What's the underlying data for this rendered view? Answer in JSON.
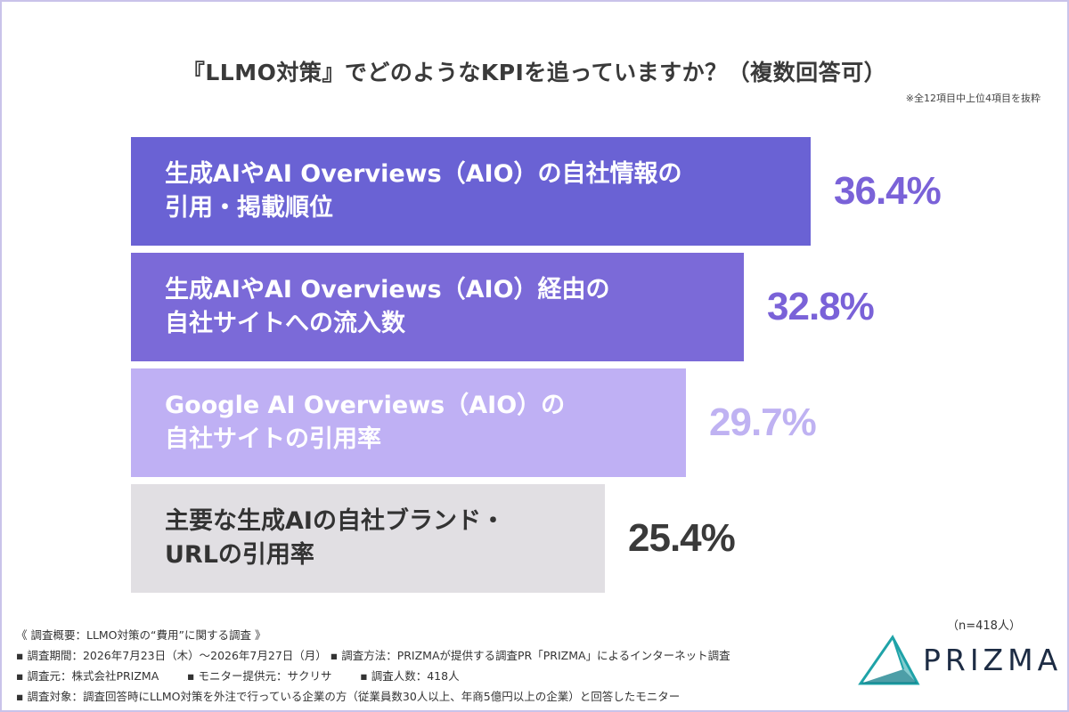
{
  "title": "『LLMO対策』でどのようなKPIを追っていますか？（複数回答可）",
  "note": "※全12項目中上位4項目を抜粋",
  "chart_data": {
    "type": "bar",
    "orientation": "horizontal",
    "categories": [
      "生成AIやAI Overviews（AIO）の自社情報の\n引用・掲載順位",
      "生成AIやAI Overviews（AIO）経由の\n自社サイトへの流入数",
      "Google AI Overviews（AIO）の\n自社サイトの引用率",
      "主要な生成AIの自社ブランド・\nURLの引用率"
    ],
    "values": [
      36.4,
      32.8,
      29.7,
      25.4
    ],
    "value_labels": [
      "36.4%",
      "32.8%",
      "29.7%",
      "25.4%"
    ],
    "bar_colors": [
      "#6a62d4",
      "#7b6ad8",
      "#bfb0f4",
      "#e1dfe3"
    ],
    "label_colors": [
      "#ffffff",
      "#ffffff",
      "#ffffff",
      "#333333"
    ],
    "value_colors": [
      "#7a62d8",
      "#7a62d8",
      "#bfb2f2",
      "#3a3a3a"
    ]
  },
  "footer": {
    "lines": [
      "《 調査概要：LLMO対策の“費用”に関する調査 》",
      "▪ 調査期間：2026年7月23日（木）〜2026年7月27日（月） ▪ 調査方法：PRIZMAが提供する調査PR「PRIZMA」によるインターネット調査",
      "▪ 調査元：株式会社PRIZMA        ▪ モニター提供元：サクリサ        ▪ 調査人数：418人",
      "▪ 調査対象：調査回答時にLLMO対策を外注で行っている企業の方（従業員数30人以上、年商5億円以上の企業）と回答したモニター"
    ],
    "n": "（n=418人）"
  },
  "brand": {
    "name": "PRIZMA",
    "colors": [
      "#1fa3a8",
      "#1d2c44"
    ]
  }
}
